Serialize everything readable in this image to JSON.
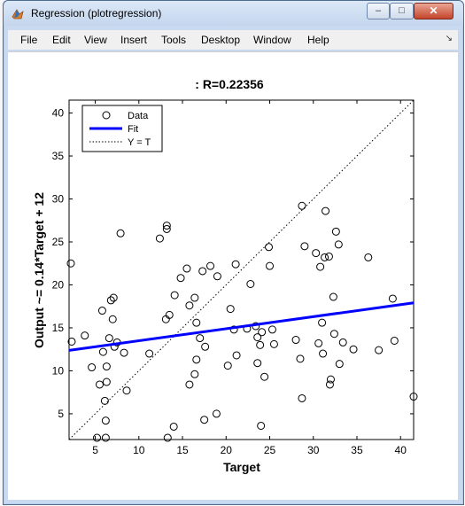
{
  "window": {
    "title": "Regression (plotregression)",
    "buttons": {
      "minimize": "–",
      "maximize": "□",
      "close": "✕"
    }
  },
  "menu": {
    "items": [
      "File",
      "Edit",
      "View",
      "Insert",
      "Tools",
      "Desktop",
      "Window",
      "Help"
    ],
    "dock_icon": "dock-arrow-icon"
  },
  "chart_data": {
    "type": "scatter",
    "title": ": R=0.22356",
    "xlabel": "Target",
    "ylabel": "Output ~= 0.14*Target + 12",
    "xlim": [
      2,
      41.5
    ],
    "ylim": [
      2,
      41.5
    ],
    "xticks": [
      5,
      10,
      15,
      20,
      25,
      30,
      35,
      40
    ],
    "yticks": [
      5,
      10,
      15,
      20,
      25,
      30,
      35,
      40
    ],
    "legend": {
      "placement": "top-left",
      "entries": [
        "Data",
        "Fit",
        "Y = T"
      ]
    },
    "fit": {
      "slope": 0.14,
      "intercept": 12.1,
      "color": "#0000ff"
    },
    "identity_line": true,
    "points": [
      [
        2.2,
        22.5
      ],
      [
        2.3,
        13.4
      ],
      [
        3.8,
        14.1
      ],
      [
        4.6,
        10.4
      ],
      [
        5.2,
        2.2
      ],
      [
        5.5,
        8.4
      ],
      [
        5.8,
        17
      ],
      [
        5.9,
        12.2
      ],
      [
        6.1,
        6.5
      ],
      [
        6.2,
        4.2
      ],
      [
        6.3,
        8.7
      ],
      [
        6.3,
        10.5
      ],
      [
        6.6,
        13.8
      ],
      [
        6.8,
        18.2
      ],
      [
        7,
        16
      ],
      [
        7.1,
        18.5
      ],
      [
        7.2,
        12.8
      ],
      [
        7.5,
        13.3
      ],
      [
        7.9,
        26
      ],
      [
        8.3,
        12.1
      ],
      [
        8.6,
        7.7
      ],
      [
        6.2,
        2.2
      ],
      [
        11.2,
        12
      ],
      [
        12.4,
        25.4
      ],
      [
        13.2,
        26.5
      ],
      [
        13.2,
        26.9
      ],
      [
        13.1,
        16
      ],
      [
        13.5,
        16.5
      ],
      [
        13.3,
        2.2
      ],
      [
        14,
        3.5
      ],
      [
        14.1,
        18.8
      ],
      [
        14.8,
        20.8
      ],
      [
        15.5,
        21.9
      ],
      [
        15.8,
        8.4
      ],
      [
        15.8,
        17.6
      ],
      [
        16.4,
        18.5
      ],
      [
        16.6,
        15.6
      ],
      [
        16.6,
        11.3
      ],
      [
        16.4,
        9.6
      ],
      [
        17,
        13.8
      ],
      [
        17.3,
        21.6
      ],
      [
        17.5,
        4.3
      ],
      [
        17.6,
        12.8
      ],
      [
        18.2,
        22.2
      ],
      [
        18.9,
        5
      ],
      [
        19,
        21
      ],
      [
        20.2,
        10.6
      ],
      [
        20.5,
        17.2
      ],
      [
        20.9,
        14.8
      ],
      [
        21.1,
        22.4
      ],
      [
        21.2,
        11.8
      ],
      [
        22.4,
        14.9
      ],
      [
        22.8,
        20.1
      ],
      [
        23.4,
        15.2
      ],
      [
        23.6,
        13.9
      ],
      [
        23.6,
        10.9
      ],
      [
        23.9,
        13
      ],
      [
        24,
        3.6
      ],
      [
        24.1,
        14.5
      ],
      [
        24.4,
        9.3
      ],
      [
        24.9,
        24.4
      ],
      [
        25,
        22.2
      ],
      [
        25.3,
        14.8
      ],
      [
        25.5,
        13.1
      ],
      [
        28,
        13.6
      ],
      [
        28.5,
        11.4
      ],
      [
        28.7,
        29.2
      ],
      [
        28.7,
        6.8
      ],
      [
        29,
        24.5
      ],
      [
        30.3,
        23.7
      ],
      [
        30.6,
        13.2
      ],
      [
        30.8,
        22.1
      ],
      [
        31,
        15.6
      ],
      [
        31.1,
        12
      ],
      [
        31.3,
        23.2
      ],
      [
        31.4,
        28.6
      ],
      [
        31.8,
        23.3
      ],
      [
        31.9,
        8.4
      ],
      [
        32,
        9
      ],
      [
        32.3,
        18.6
      ],
      [
        32.4,
        14.3
      ],
      [
        32.6,
        26.2
      ],
      [
        32.9,
        24.7
      ],
      [
        33,
        10.8
      ],
      [
        33.4,
        13.3
      ],
      [
        34.6,
        12.5
      ],
      [
        36.3,
        23.2
      ],
      [
        37.5,
        12.4
      ],
      [
        39.1,
        18.4
      ],
      [
        39.3,
        13.5
      ],
      [
        41.5,
        7
      ]
    ]
  }
}
